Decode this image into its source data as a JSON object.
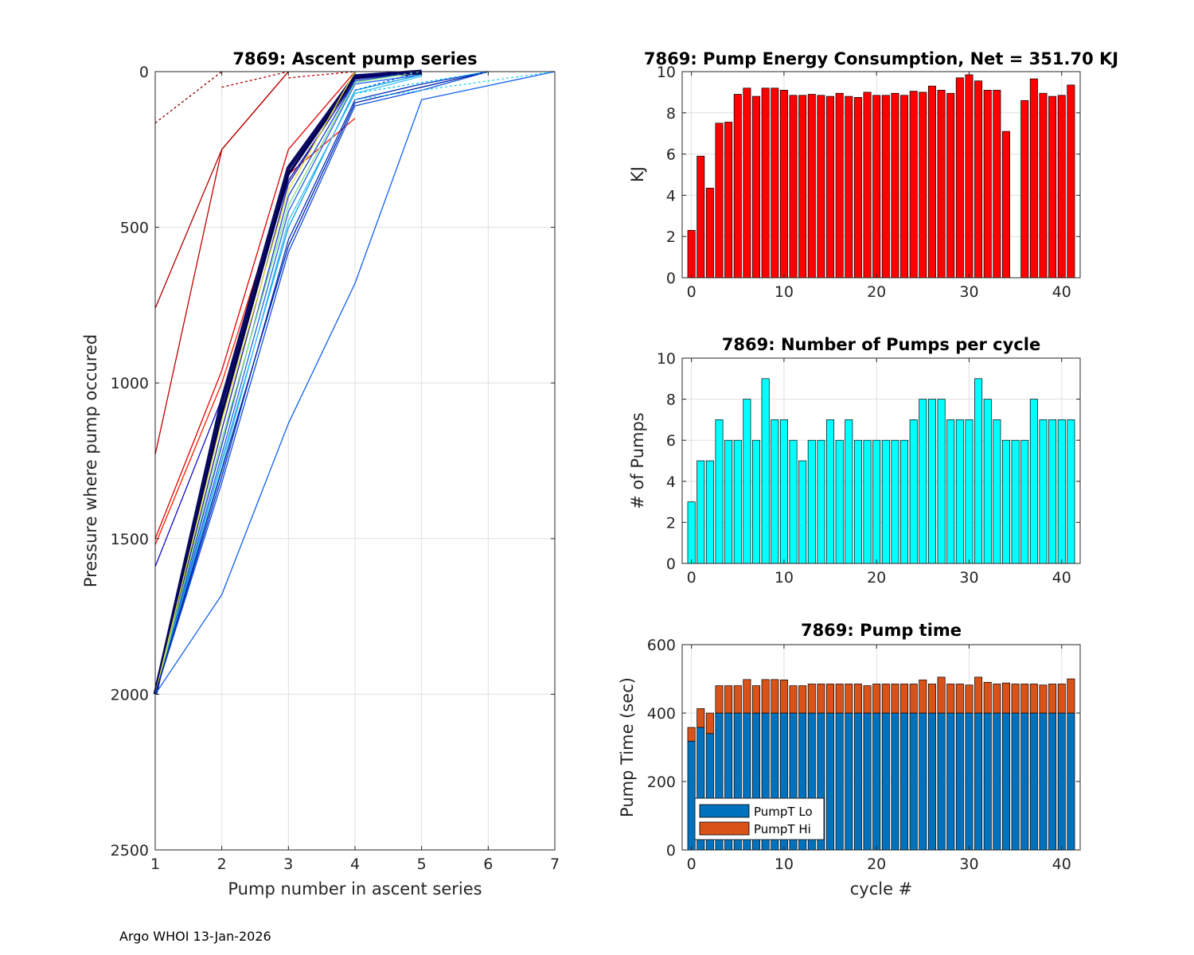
{
  "footer": "Argo WHOI 13-Jan-2026",
  "colors": {
    "energy": "#ff0000",
    "pumps": "#00ffff",
    "lo": "#0072bd",
    "hi": "#d95319",
    "grid": "#dfdfdf",
    "axis": "#262626"
  },
  "chart_data": [
    {
      "id": "ascent",
      "type": "line",
      "title": "7869: Ascent pump series",
      "xlabel": "Pump number in ascent series",
      "ylabel": "Pressure where pump occured",
      "xlim": [
        1,
        7
      ],
      "ylim": [
        0,
        2500
      ],
      "y_reversed": true,
      "xticks": [
        1,
        2,
        3,
        4,
        5,
        6,
        7
      ],
      "yticks": [
        0,
        500,
        1000,
        1500,
        2000,
        2500
      ],
      "grid": true,
      "series": [
        {
          "color": "#8b0000",
          "dash": "3,3",
          "x": [
            1,
            2
          ],
          "y": [
            165,
            0
          ]
        },
        {
          "color": "#b00000",
          "dash": "3,3",
          "x": [
            2,
            3
          ],
          "y": [
            50,
            0
          ]
        },
        {
          "color": "#c00000",
          "dash": "3,3",
          "x": [
            3,
            4
          ],
          "y": [
            20,
            0
          ]
        },
        {
          "color": "#b00000",
          "dash": "",
          "x": [
            1,
            2,
            3
          ],
          "y": [
            760,
            250,
            0
          ]
        },
        {
          "color": "#c00000",
          "dash": "",
          "x": [
            1,
            2,
            3
          ],
          "y": [
            1230,
            250,
            0
          ]
        },
        {
          "color": "#e00000",
          "dash": "",
          "x": [
            1,
            2,
            3,
            4
          ],
          "y": [
            1500,
            960,
            250,
            0
          ]
        },
        {
          "color": "#ff2000",
          "dash": "",
          "x": [
            1,
            2,
            3,
            4
          ],
          "y": [
            1520,
            1000,
            330,
            150
          ]
        },
        {
          "color": "#1010c0",
          "dash": "",
          "x": [
            1,
            2,
            3,
            4
          ],
          "y": [
            1590,
            1050,
            350,
            30
          ]
        },
        {
          "color": "#0a0a60",
          "dash": "",
          "x": [
            1,
            2,
            3,
            4,
            5
          ],
          "y": [
            2000,
            1060,
            310,
            15,
            0
          ],
          "width": 5
        },
        {
          "color": "#000050",
          "dash": "",
          "x": [
            1,
            2,
            3,
            4,
            5
          ],
          "y": [
            2000,
            1100,
            330,
            20,
            5
          ],
          "width": 3
        },
        {
          "color": "#202090",
          "dash": "",
          "x": [
            1,
            2,
            3,
            4,
            5
          ],
          "y": [
            2000,
            1150,
            360,
            25,
            0
          ]
        },
        {
          "color": "#1040d0",
          "dash": "",
          "x": [
            1,
            2,
            3,
            4,
            5
          ],
          "y": [
            2000,
            1200,
            400,
            30,
            0
          ]
        },
        {
          "color": "#2060f0",
          "dash": "",
          "x": [
            1,
            2,
            3,
            4,
            5
          ],
          "y": [
            2000,
            1230,
            450,
            40,
            10
          ]
        },
        {
          "color": "#00a0e0",
          "dash": "",
          "x": [
            1,
            2,
            3,
            4,
            5
          ],
          "y": [
            2000,
            1250,
            500,
            60,
            10
          ]
        },
        {
          "color": "#40c0ff",
          "dash": "",
          "x": [
            1,
            2,
            3,
            4,
            5
          ],
          "y": [
            2000,
            1270,
            480,
            70,
            15
          ]
        },
        {
          "color": "#80e080",
          "dash": "",
          "x": [
            1,
            2,
            3,
            4,
            5
          ],
          "y": [
            2000,
            1180,
            430,
            35,
            0
          ]
        },
        {
          "color": "#e0e040",
          "dash": "",
          "x": [
            1,
            2,
            3,
            4
          ],
          "y": [
            2000,
            1120,
            380,
            0
          ]
        },
        {
          "color": "#0030c0",
          "dash": "",
          "x": [
            1,
            2,
            3,
            4,
            5,
            6
          ],
          "y": [
            2000,
            1300,
            540,
            90,
            40,
            0
          ]
        },
        {
          "color": "#1050e0",
          "dash": "",
          "x": [
            1,
            2,
            3,
            4,
            5,
            6
          ],
          "y": [
            2000,
            1320,
            580,
            110,
            60,
            0
          ]
        },
        {
          "color": "#0020a0",
          "dash": "",
          "x": [
            1,
            2,
            3,
            4,
            5,
            6
          ],
          "y": [
            2000,
            1280,
            560,
            100,
            50,
            0
          ]
        },
        {
          "color": "#1060f0",
          "dash": "",
          "x": [
            1,
            2,
            3,
            4,
            5,
            6,
            7
          ],
          "y": [
            2000,
            1680,
            1130,
            680,
            90,
            45,
            0
          ]
        },
        {
          "color": "#00c0ff",
          "dash": "3,3",
          "x": [
            4,
            6
          ],
          "y": [
            70,
            0
          ]
        },
        {
          "color": "#20d0ff",
          "dash": "3,3",
          "x": [
            4,
            7
          ],
          "y": [
            90,
            0
          ]
        },
        {
          "color": "#0060e0",
          "dash": "3,3",
          "x": [
            4,
            5
          ],
          "y": [
            60,
            0
          ]
        },
        {
          "color": "#000070",
          "dash": "5,3",
          "x": [
            4,
            5
          ],
          "y": [
            15,
            0
          ],
          "width": 4
        }
      ]
    },
    {
      "id": "energy",
      "type": "bar",
      "title": "7869: Pump Energy Consumption,  Net = 351.70 KJ",
      "xlabel": "",
      "ylabel": "KJ",
      "xlim": [
        -1,
        42
      ],
      "ylim": [
        0,
        10
      ],
      "xticks": [
        0,
        10,
        20,
        30,
        40
      ],
      "yticks": [
        0,
        2,
        4,
        6,
        8,
        10
      ],
      "grid": true,
      "x": [
        0,
        1,
        2,
        3,
        4,
        5,
        6,
        7,
        8,
        9,
        10,
        11,
        12,
        13,
        14,
        15,
        16,
        17,
        18,
        19,
        20,
        21,
        22,
        23,
        24,
        25,
        26,
        27,
        28,
        29,
        30,
        31,
        32,
        33,
        34,
        35,
        36,
        37,
        38,
        39,
        40,
        41
      ],
      "values": [
        2.3,
        5.9,
        4.35,
        7.5,
        7.55,
        8.9,
        9.2,
        8.8,
        9.2,
        9.2,
        9.1,
        8.85,
        8.85,
        8.9,
        8.85,
        8.8,
        8.95,
        8.8,
        8.75,
        9.0,
        8.85,
        8.85,
        8.95,
        8.85,
        9.05,
        9.0,
        9.3,
        9.1,
        8.95,
        9.7,
        9.85,
        9.55,
        9.1,
        9.1,
        7.1,
        0,
        8.6,
        9.65,
        8.95,
        8.8,
        8.85,
        9.35
      ]
    },
    {
      "id": "pumps",
      "type": "bar",
      "title": "7869: Number of Pumps per cycle",
      "xlabel": "",
      "ylabel": "# of Pumps",
      "xlim": [
        -1,
        42
      ],
      "ylim": [
        0,
        10
      ],
      "xticks": [
        0,
        10,
        20,
        30,
        40
      ],
      "yticks": [
        0,
        2,
        4,
        6,
        8,
        10
      ],
      "grid": true,
      "x": [
        0,
        1,
        2,
        3,
        4,
        5,
        6,
        7,
        8,
        9,
        10,
        11,
        12,
        13,
        14,
        15,
        16,
        17,
        18,
        19,
        20,
        21,
        22,
        23,
        24,
        25,
        26,
        27,
        28,
        29,
        30,
        31,
        32,
        33,
        34,
        35,
        36,
        37,
        38,
        39,
        40,
        41
      ],
      "values": [
        3,
        5,
        5,
        7,
        6,
        6,
        8,
        6,
        9,
        7,
        7,
        6,
        5,
        6,
        6,
        7,
        6,
        7,
        6,
        6,
        6,
        6,
        6,
        6,
        7,
        8,
        8,
        8,
        7,
        7,
        7,
        9,
        8,
        7,
        6,
        6,
        6,
        8,
        7,
        7,
        7,
        7
      ]
    },
    {
      "id": "time",
      "type": "bar",
      "stacked": true,
      "title": "7869: Pump time",
      "xlabel": "cycle #",
      "ylabel": "Pump Time (sec)",
      "xlim": [
        -1,
        42
      ],
      "ylim": [
        0,
        600
      ],
      "xticks": [
        0,
        10,
        20,
        30,
        40
      ],
      "yticks": [
        0,
        200,
        400,
        600
      ],
      "grid": true,
      "legend": "bottom-left",
      "x": [
        0,
        1,
        2,
        3,
        4,
        5,
        6,
        7,
        8,
        9,
        10,
        11,
        12,
        13,
        14,
        15,
        16,
        17,
        18,
        19,
        20,
        21,
        22,
        23,
        24,
        25,
        26,
        27,
        28,
        29,
        30,
        31,
        32,
        33,
        34,
        35,
        36,
        37,
        38,
        39,
        40,
        41
      ],
      "series": [
        {
          "name": "PumpT Lo",
          "values": [
            318,
            358,
            340,
            400,
            400,
            400,
            400,
            400,
            400,
            400,
            400,
            400,
            400,
            400,
            400,
            400,
            400,
            400,
            400,
            400,
            400,
            400,
            400,
            400,
            400,
            400,
            400,
            400,
            400,
            400,
            400,
            400,
            400,
            400,
            400,
            400,
            400,
            400,
            400,
            400,
            400,
            400
          ]
        },
        {
          "name": "PumpT Hi",
          "values": [
            40,
            55,
            60,
            80,
            80,
            80,
            98,
            80,
            98,
            98,
            97,
            80,
            80,
            85,
            85,
            85,
            85,
            85,
            85,
            80,
            85,
            85,
            85,
            85,
            85,
            97,
            85,
            105,
            85,
            85,
            82,
            105,
            90,
            85,
            88,
            85,
            85,
            85,
            82,
            85,
            85,
            100
          ]
        }
      ]
    }
  ]
}
